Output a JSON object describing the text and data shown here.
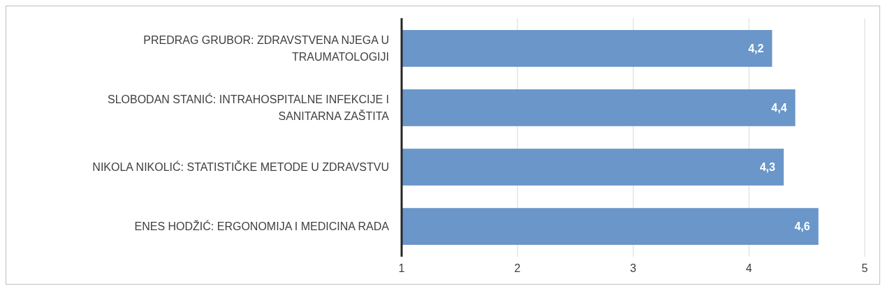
{
  "chart_data": {
    "type": "bar",
    "orientation": "horizontal",
    "categories": [
      "PREDRAG GRUBOR: ZDRAVSTVENA NJEGA U TRAUMATOLOGIJI",
      "SLOBODAN STANIĆ: INTRAHOSPITALNE INFEKCIJE I SANITARNA ZAŠTITA",
      "NIKOLA NIKOLIĆ: STATISTIČKE METODE U ZDRAVSTVU",
      "ENES HODŽIĆ: ERGONOMIJA I MEDICINA RADA"
    ],
    "values": [
      4.2,
      4.4,
      4.3,
      4.6
    ],
    "value_labels": [
      "4,2",
      "4,4",
      "4,3",
      "4,6"
    ],
    "color": "#6a96c9",
    "xlim": [
      1,
      5
    ],
    "xticks": [
      1,
      2,
      3,
      4,
      5
    ],
    "grid": "x"
  }
}
